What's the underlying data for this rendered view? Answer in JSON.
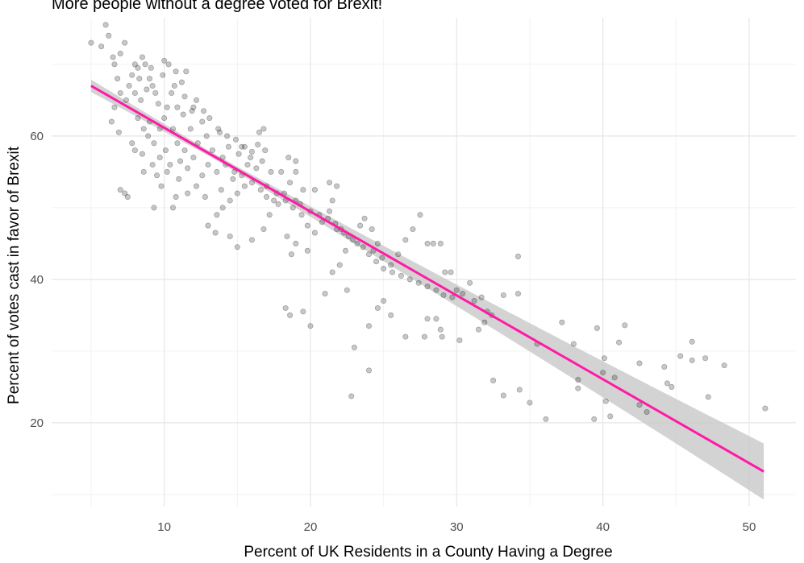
{
  "chart_data": {
    "type": "scatter",
    "title": "More people without a degree voted for Brexit!",
    "xlabel": "Percent of UK Residents in a County Having a Degree",
    "ylabel": "Percent of votes cast in favor of Brexit",
    "xlim": [
      2.3,
      53.2
    ],
    "ylim": [
      8.3,
      76.5
    ],
    "xticks": [
      10,
      20,
      30,
      40,
      50
    ],
    "yticks": [
      20,
      40,
      60
    ],
    "grid": true,
    "legend": "none",
    "point_color": "#000000",
    "point_opacity": 0.22,
    "trend_color": "#ff1aa6",
    "band_color": "#c8c8c8",
    "trend": {
      "x": [
        5,
        51
      ],
      "y": [
        67.0,
        13.2
      ]
    },
    "points": [
      [
        5.0,
        73.0
      ],
      [
        5.7,
        72.5
      ],
      [
        6.0,
        75.5
      ],
      [
        6.2,
        74.0
      ],
      [
        6.5,
        71.0
      ],
      [
        6.6,
        70.0
      ],
      [
        6.8,
        68.0
      ],
      [
        7.0,
        71.5
      ],
      [
        7.3,
        73.0
      ],
      [
        7.0,
        66.0
      ],
      [
        6.6,
        64.0
      ],
      [
        6.4,
        62.0
      ],
      [
        6.9,
        60.5
      ],
      [
        7.0,
        52.5
      ],
      [
        7.3,
        52.0
      ],
      [
        7.5,
        51.5
      ],
      [
        7.4,
        65.0
      ],
      [
        7.6,
        67.0
      ],
      [
        7.8,
        68.5
      ],
      [
        8.0,
        70.0
      ],
      [
        8.2,
        69.5
      ],
      [
        8.5,
        71.0
      ],
      [
        8.7,
        70.0
      ],
      [
        8.0,
        66.0
      ],
      [
        8.4,
        65.0
      ],
      [
        8.8,
        66.5
      ],
      [
        9.0,
        68.0
      ],
      [
        9.2,
        67.0
      ],
      [
        9.4,
        66.0
      ],
      [
        9.6,
        64.5
      ],
      [
        9.0,
        62.0
      ],
      [
        8.6,
        61.0
      ],
      [
        8.2,
        62.5
      ],
      [
        7.8,
        59.0
      ],
      [
        8.0,
        58.0
      ],
      [
        8.5,
        57.5
      ],
      [
        8.9,
        60.0
      ],
      [
        9.3,
        59.0
      ],
      [
        9.7,
        61.0
      ],
      [
        10.0,
        62.5
      ],
      [
        10.2,
        64.0
      ],
      [
        10.0,
        70.5
      ],
      [
        10.3,
        70.0
      ],
      [
        10.8,
        69.0
      ],
      [
        11.2,
        67.5
      ],
      [
        10.5,
        66.0
      ],
      [
        10.9,
        64.0
      ],
      [
        11.3,
        63.0
      ],
      [
        10.6,
        61.0
      ],
      [
        10.9,
        59.0
      ],
      [
        11.4,
        58.0
      ],
      [
        11.1,
        56.5
      ],
      [
        10.4,
        56.0
      ],
      [
        10.1,
        58.0
      ],
      [
        9.7,
        57.0
      ],
      [
        9.5,
        54.5
      ],
      [
        9.8,
        53.0
      ],
      [
        10.2,
        55.0
      ],
      [
        9.3,
        50.0
      ],
      [
        10.6,
        50.0
      ],
      [
        11.0,
        54.0
      ],
      [
        11.6,
        55.5
      ],
      [
        12.0,
        57.0
      ],
      [
        12.3,
        59.0
      ],
      [
        11.8,
        61.0
      ],
      [
        11.9,
        63.5
      ],
      [
        12.2,
        65.0
      ],
      [
        11.5,
        69.0
      ],
      [
        12.6,
        62.0
      ],
      [
        12.9,
        60.0
      ],
      [
        13.3,
        58.0
      ],
      [
        13.0,
        56.0
      ],
      [
        12.6,
        54.5
      ],
      [
        13.6,
        55.0
      ],
      [
        14.0,
        57.0
      ],
      [
        14.4,
        58.5
      ],
      [
        13.8,
        60.5
      ],
      [
        14.2,
        56.0
      ],
      [
        14.8,
        55.0
      ],
      [
        15.1,
        57.5
      ],
      [
        15.5,
        58.5
      ],
      [
        15.9,
        57.0
      ],
      [
        16.3,
        55.5
      ],
      [
        16.7,
        56.5
      ],
      [
        16.9,
        58.0
      ],
      [
        16.5,
        60.5
      ],
      [
        16.8,
        61.0
      ],
      [
        15.5,
        53.0
      ],
      [
        15.0,
        52.0
      ],
      [
        14.5,
        51.0
      ],
      [
        14.0,
        50.0
      ],
      [
        13.6,
        49.0
      ],
      [
        13.0,
        47.5
      ],
      [
        13.5,
        46.5
      ],
      [
        14.5,
        46.0
      ],
      [
        15.0,
        44.5
      ],
      [
        16.0,
        45.5
      ],
      [
        16.8,
        47.0
      ],
      [
        17.2,
        49.0
      ],
      [
        17.8,
        50.5
      ],
      [
        18.2,
        52.0
      ],
      [
        18.6,
        53.5
      ],
      [
        19.0,
        51.0
      ],
      [
        19.4,
        49.0
      ],
      [
        19.8,
        47.5
      ],
      [
        18.4,
        46.0
      ],
      [
        19.0,
        45.0
      ],
      [
        18.7,
        43.5
      ],
      [
        19.8,
        44.0
      ],
      [
        20.3,
        46.5
      ],
      [
        20.8,
        48.0
      ],
      [
        21.3,
        49.5
      ],
      [
        21.8,
        47.0
      ],
      [
        22.3,
        46.5
      ],
      [
        21.5,
        51.0
      ],
      [
        21.3,
        53.5
      ],
      [
        21.8,
        53.0
      ],
      [
        19.5,
        52.5
      ],
      [
        20.3,
        52.5
      ],
      [
        17.0,
        53.0
      ],
      [
        17.5,
        51.0
      ],
      [
        17.3,
        55.0
      ],
      [
        18.0,
        55.0
      ],
      [
        18.5,
        57.0
      ],
      [
        19.0,
        55.0
      ],
      [
        19.0,
        56.5
      ],
      [
        22.4,
        44.0
      ],
      [
        22.9,
        45.5
      ],
      [
        23.4,
        47.5
      ],
      [
        23.7,
        48.5
      ],
      [
        24.2,
        47.0
      ],
      [
        24.6,
        45.0
      ],
      [
        24.3,
        44.0
      ],
      [
        24.9,
        43.0
      ],
      [
        25.5,
        42.0
      ],
      [
        26.0,
        43.5
      ],
      [
        26.5,
        45.5
      ],
      [
        27.0,
        47.0
      ],
      [
        27.5,
        49.0
      ],
      [
        28.0,
        45.0
      ],
      [
        28.4,
        45.0
      ],
      [
        28.9,
        45.0
      ],
      [
        29.2,
        41.0
      ],
      [
        29.6,
        41.0
      ],
      [
        30.0,
        38.5
      ],
      [
        30.4,
        38.0
      ],
      [
        30.9,
        39.5
      ],
      [
        31.2,
        37.0
      ],
      [
        31.7,
        37.5
      ],
      [
        32.1,
        35.5
      ],
      [
        31.9,
        34.0
      ],
      [
        31.5,
        33.0
      ],
      [
        32.4,
        35.0
      ],
      [
        33.2,
        37.8
      ],
      [
        34.2,
        38.0
      ],
      [
        34.2,
        43.2
      ],
      [
        28.0,
        34.5
      ],
      [
        28.6,
        34.5
      ],
      [
        28.9,
        33.0
      ],
      [
        29.0,
        32.0
      ],
      [
        30.2,
        31.5
      ],
      [
        27.8,
        32.0
      ],
      [
        26.5,
        32.0
      ],
      [
        25.5,
        35.0
      ],
      [
        24.6,
        36.0
      ],
      [
        25.0,
        37.0
      ],
      [
        24.0,
        33.5
      ],
      [
        22.5,
        38.5
      ],
      [
        21.0,
        38.0
      ],
      [
        21.5,
        41.0
      ],
      [
        22.0,
        42.0
      ],
      [
        20.0,
        33.5
      ],
      [
        19.5,
        35.5
      ],
      [
        18.3,
        36.0
      ],
      [
        18.6,
        35.0
      ],
      [
        23.0,
        30.5
      ],
      [
        24.0,
        27.3
      ],
      [
        22.8,
        23.7
      ],
      [
        32.5,
        25.9
      ],
      [
        33.2,
        23.8
      ],
      [
        34.3,
        24.6
      ],
      [
        35.0,
        22.8
      ],
      [
        35.5,
        31.0
      ],
      [
        36.1,
        20.5
      ],
      [
        37.2,
        34.0
      ],
      [
        38.0,
        31.0
      ],
      [
        38.3,
        26.0
      ],
      [
        38.3,
        24.8
      ],
      [
        39.4,
        20.5
      ],
      [
        39.6,
        33.2
      ],
      [
        40.0,
        27.0
      ],
      [
        40.1,
        29.0
      ],
      [
        40.2,
        23.0
      ],
      [
        40.5,
        20.9
      ],
      [
        40.8,
        26.3
      ],
      [
        41.1,
        31.2
      ],
      [
        41.5,
        33.6
      ],
      [
        42.5,
        28.3
      ],
      [
        42.5,
        22.5
      ],
      [
        43.0,
        21.5
      ],
      [
        44.2,
        27.8
      ],
      [
        44.4,
        25.5
      ],
      [
        44.7,
        25.0
      ],
      [
        45.3,
        29.3
      ],
      [
        46.1,
        31.3
      ],
      [
        46.1,
        28.7
      ],
      [
        47.0,
        29.0
      ],
      [
        47.2,
        23.6
      ],
      [
        48.3,
        28.0
      ],
      [
        51.1,
        22.0
      ],
      [
        8.3,
        68.0
      ],
      [
        9.1,
        69.5
      ],
      [
        9.9,
        68.5
      ],
      [
        10.7,
        67.0
      ],
      [
        11.4,
        65.5
      ],
      [
        12.0,
        64.0
      ],
      [
        12.7,
        63.5
      ],
      [
        13.1,
        62.5
      ],
      [
        13.7,
        61.0
      ],
      [
        14.3,
        60.0
      ],
      [
        14.9,
        59.5
      ],
      [
        15.3,
        58.5
      ],
      [
        16.0,
        57.8
      ],
      [
        16.4,
        58.8
      ],
      [
        15.7,
        56.0
      ],
      [
        14.7,
        54.0
      ],
      [
        15.3,
        54.5
      ],
      [
        16.0,
        53.5
      ],
      [
        16.6,
        52.5
      ],
      [
        17.0,
        51.5
      ],
      [
        17.7,
        52.0
      ],
      [
        18.3,
        51.0
      ],
      [
        18.8,
        50.0
      ],
      [
        19.3,
        50.5
      ],
      [
        20.0,
        49.5
      ],
      [
        20.6,
        49.0
      ],
      [
        21.2,
        48.5
      ],
      [
        21.7,
        47.8
      ],
      [
        22.1,
        47.0
      ],
      [
        22.6,
        46.0
      ],
      [
        23.2,
        45.0
      ],
      [
        23.6,
        44.5
      ],
      [
        24.0,
        43.5
      ],
      [
        24.5,
        42.5
      ],
      [
        25.0,
        41.5
      ],
      [
        25.6,
        41.0
      ],
      [
        26.2,
        40.5
      ],
      [
        26.8,
        40.0
      ],
      [
        27.4,
        39.5
      ],
      [
        28.0,
        39.0
      ],
      [
        28.6,
        38.5
      ],
      [
        29.1,
        37.8
      ],
      [
        29.7,
        37.5
      ],
      [
        13.9,
        52.5
      ],
      [
        12.8,
        51.5
      ],
      [
        12.2,
        53.0
      ],
      [
        11.6,
        52.0
      ],
      [
        10.8,
        51.5
      ],
      [
        9.2,
        56.0
      ],
      [
        8.6,
        55.0
      ]
    ]
  }
}
